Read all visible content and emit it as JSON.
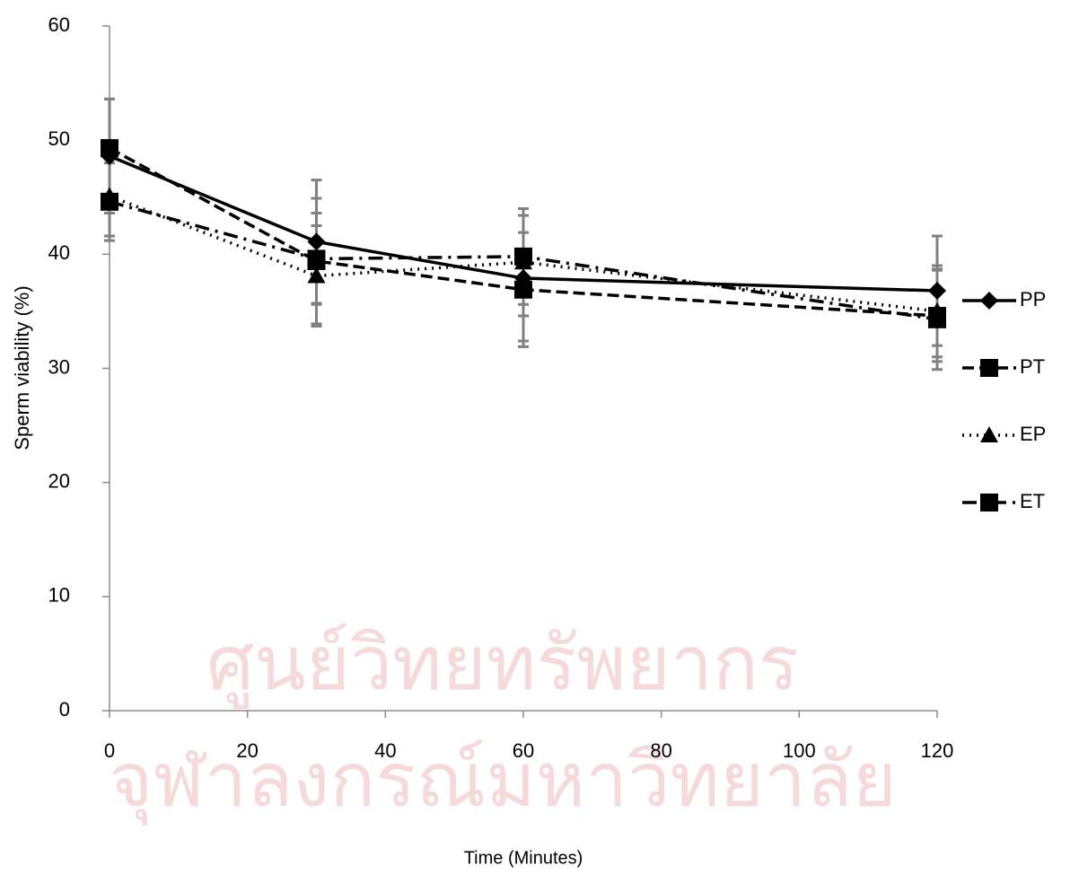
{
  "chart_data": {
    "type": "line",
    "x_label": "Time (Minutes)",
    "y_label": "Sperm viability (%)",
    "watermark": [
      "ศูนย์วิทยทรัพยากร",
      "จุฬาลงกรณ์มหาวิทยาลัย"
    ],
    "x": [
      0,
      30,
      60,
      120
    ],
    "series": [
      {
        "name": "PP",
        "color": "#000000",
        "dash": "solid",
        "marker": "diamond",
        "values": [
          48.6,
          41.1,
          37.9,
          36.8
        ],
        "errors": [
          5.0,
          5.4,
          5.5,
          4.8
        ]
      },
      {
        "name": "PT",
        "color": "#000000",
        "dash": "dashed",
        "marker": "square",
        "values": [
          49.3,
          39.4,
          36.9,
          34.6
        ],
        "errors": [
          4.3,
          5.5,
          5.0,
          4.0
        ]
      },
      {
        "name": "EP",
        "color": "#000000",
        "dash": "dotted",
        "marker": "triangle",
        "values": [
          45.1,
          38.1,
          39.3,
          35.0
        ],
        "errors": [
          3.5,
          4.4,
          4.7,
          4.0
        ]
      },
      {
        "name": "ET",
        "color": "#000000",
        "dash": "dashdot",
        "marker": "square",
        "values": [
          44.6,
          39.6,
          39.8,
          34.3
        ],
        "errors": [
          3.4,
          4.0,
          4.2,
          4.4
        ]
      }
    ],
    "error_color": "#808080",
    "xlim": [
      0,
      120
    ],
    "xticks": [
      0,
      20,
      40,
      60,
      80,
      100,
      120
    ],
    "ylim": [
      0,
      60
    ],
    "yticks": [
      0,
      10,
      20,
      30,
      40,
      50,
      60
    ],
    "grid": false,
    "legend": "right"
  }
}
